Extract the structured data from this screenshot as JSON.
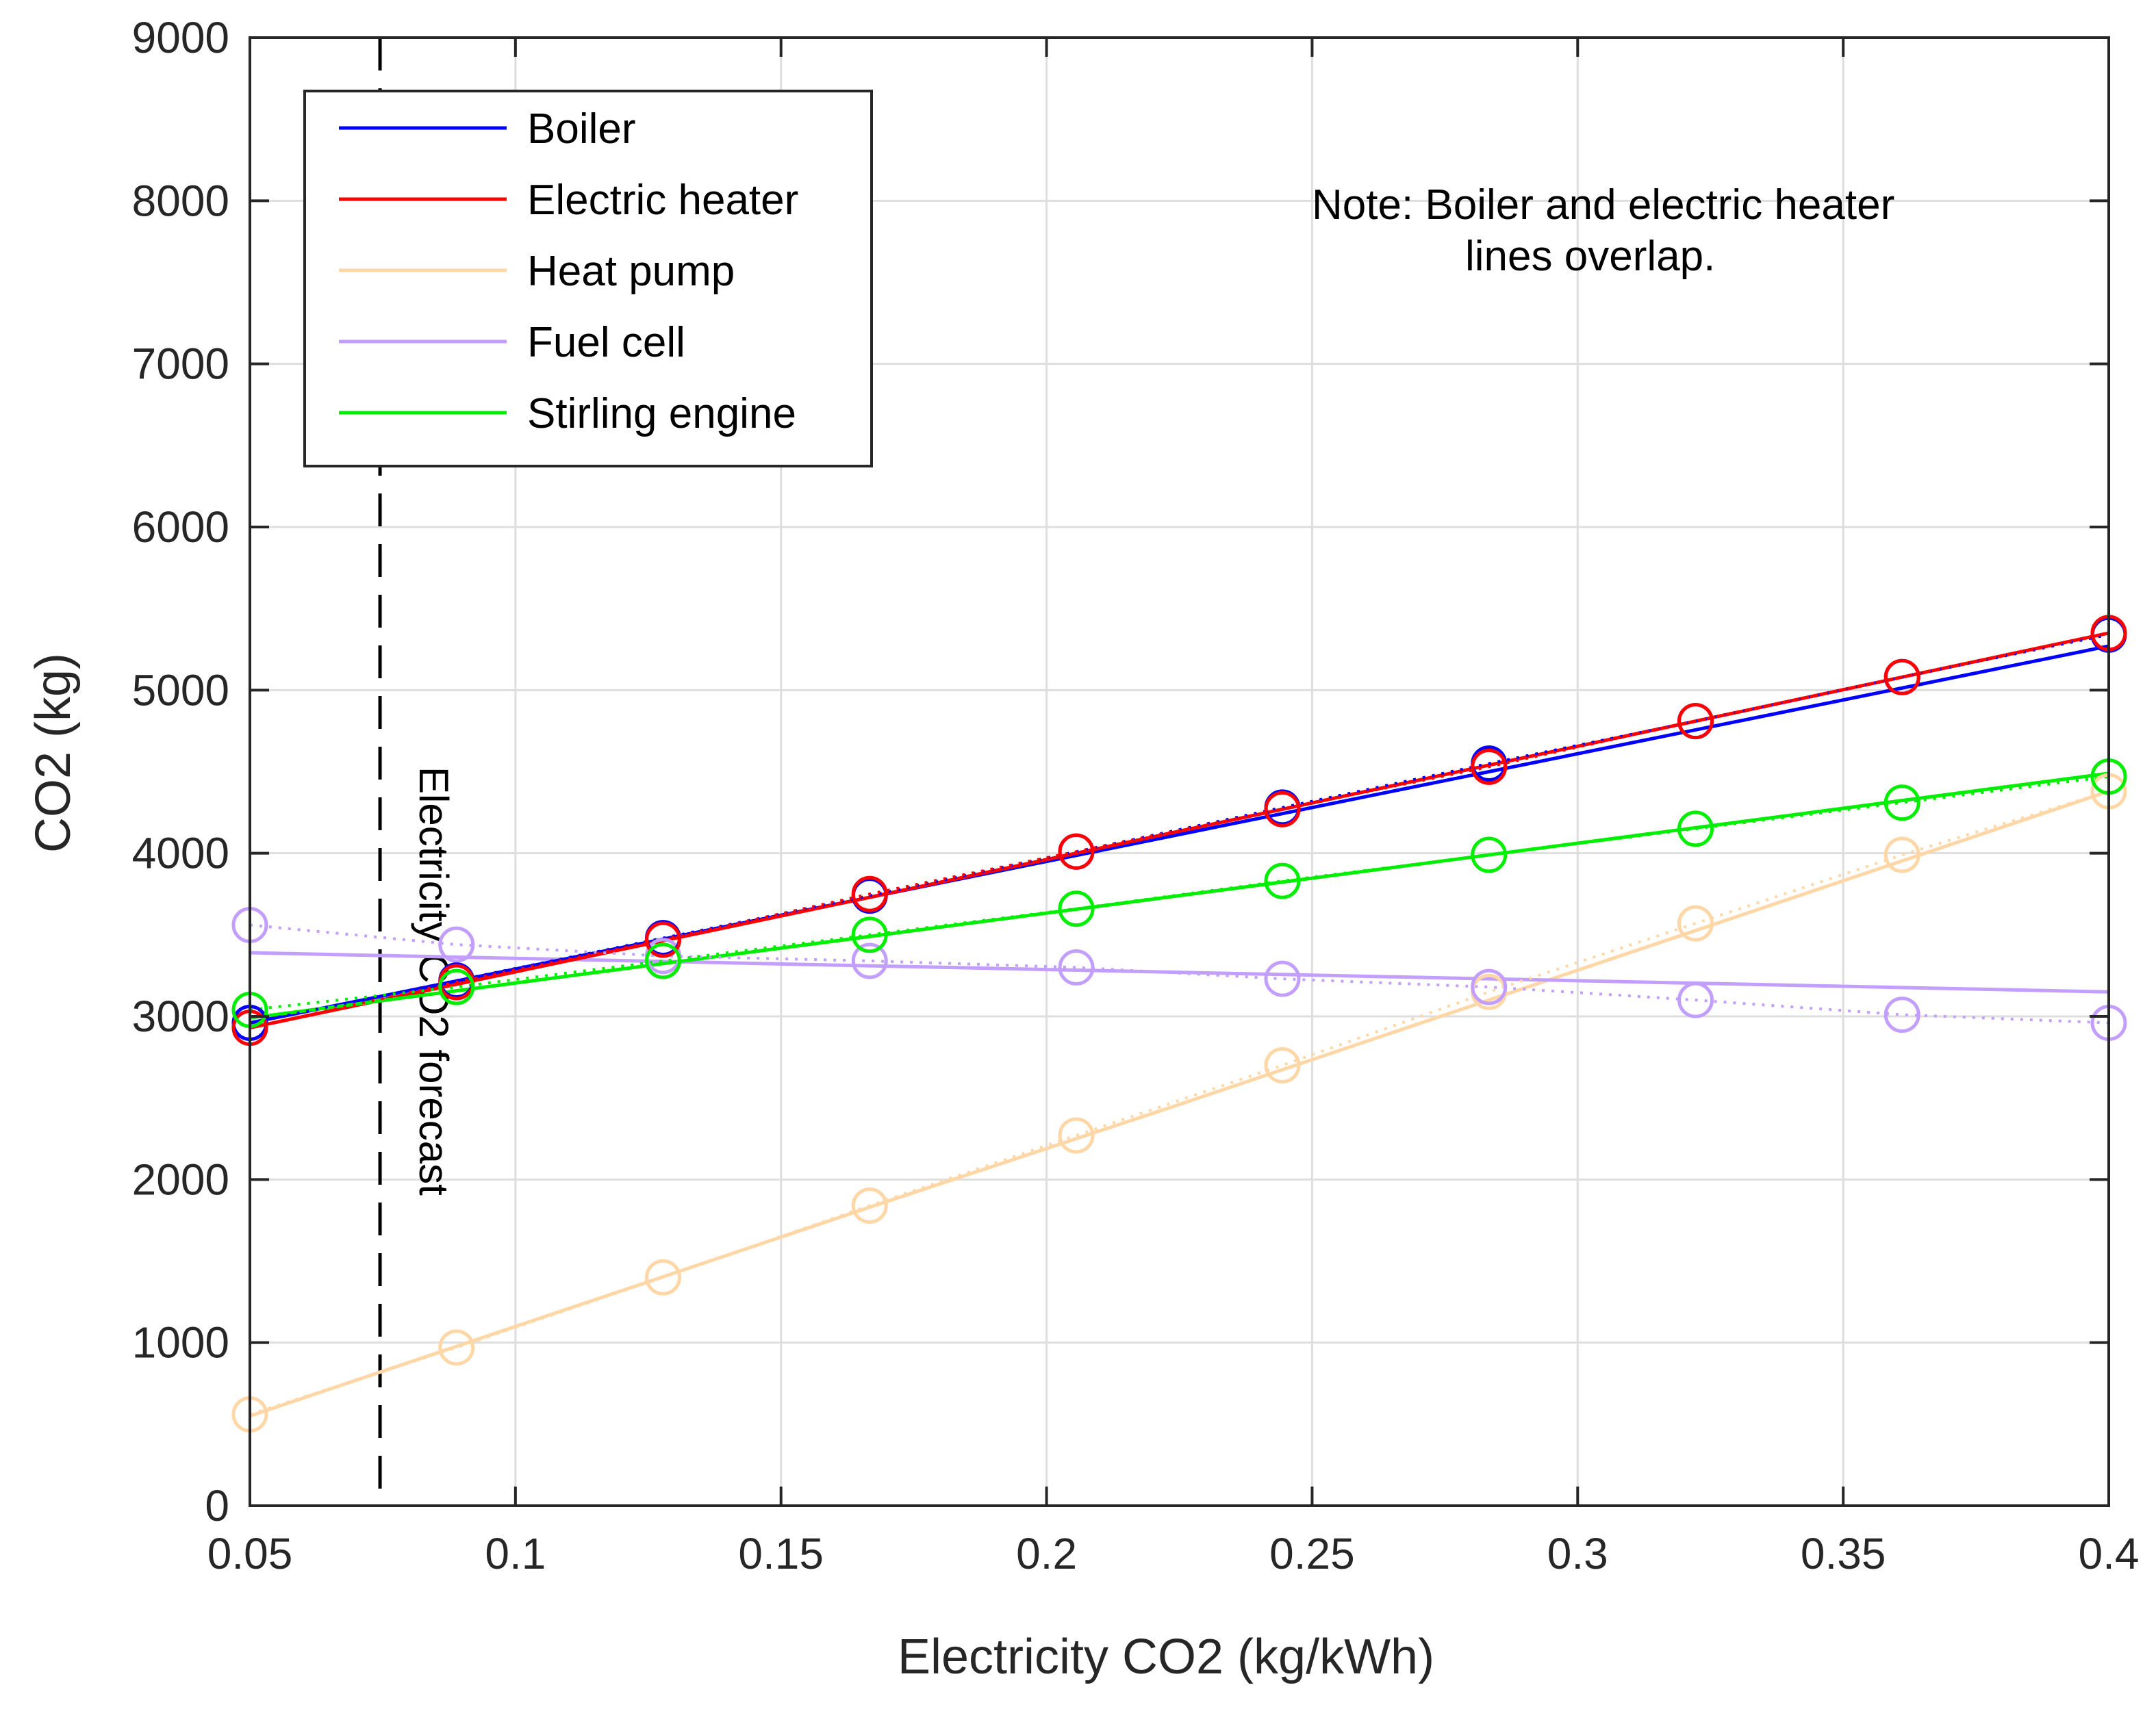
{
  "chart_data": {
    "type": "line",
    "xlabel": "Electricity CO2 (kg/kWh)",
    "ylabel": "CO2 (kg)",
    "xlim": [
      0.05,
      0.4
    ],
    "ylim": [
      0,
      9000
    ],
    "xticks": [
      0.05,
      0.1,
      0.15,
      0.2,
      0.25,
      0.3,
      0.35,
      0.4
    ],
    "xtick_labels": [
      "0.05",
      "0.1",
      "0.15",
      "0.2",
      "0.25",
      "0.3",
      "0.35",
      "0.4"
    ],
    "yticks": [
      0,
      1000,
      2000,
      3000,
      4000,
      5000,
      6000,
      7000,
      8000,
      9000
    ],
    "ytick_labels": [
      "0",
      "1000",
      "2000",
      "3000",
      "4000",
      "5000",
      "6000",
      "7000",
      "8000",
      "9000"
    ],
    "grid": true,
    "legend_position": "top-left",
    "x": [
      0.05,
      0.0889,
      0.1278,
      0.1667,
      0.2056,
      0.2444,
      0.2833,
      0.3222,
      0.3611,
      0.4
    ],
    "series": [
      {
        "name": "Boiler",
        "color": "#0000ff",
        "markers": [
          2960,
          3220,
          3480,
          3740,
          4010,
          4280,
          4550,
          4810,
          5080,
          5340
        ],
        "fit": [
          2960,
          3345,
          3730,
          4115,
          4500,
          4885,
          5270
        ],
        "fit_x": [
          0.05,
          0.1083,
          0.1667,
          0.225,
          0.2833,
          0.3417,
          0.4
        ]
      },
      {
        "name": "Electric heater",
        "color": "#ff0000",
        "markers": [
          2930,
          3210,
          3470,
          3750,
          4010,
          4270,
          4530,
          4810,
          5080,
          5350
        ],
        "fit": [
          2930,
          3330,
          3730,
          4135,
          4540,
          4945,
          5350
        ],
        "fit_x": [
          0.05,
          0.1083,
          0.1667,
          0.225,
          0.2833,
          0.3417,
          0.4
        ]
      },
      {
        "name": "Heat pump",
        "color": "#ffd7a6",
        "markers": [
          560,
          970,
          1400,
          1840,
          2270,
          2700,
          3150,
          3570,
          3990,
          4380
        ],
        "fit": [
          550,
          1190,
          1830,
          2460,
          3100,
          3740,
          4380
        ],
        "fit_x": [
          0.05,
          0.1083,
          0.1667,
          0.225,
          0.2833,
          0.3417,
          0.4
        ]
      },
      {
        "name": "Fuel cell",
        "color": "#c29fff",
        "markers": [
          3560,
          3440,
          3370,
          3340,
          3300,
          3230,
          3180,
          3100,
          3010,
          2960
        ],
        "fit": [
          3390,
          3350,
          3310,
          3270,
          3230,
          3190,
          3150
        ],
        "fit_x": [
          0.05,
          0.1083,
          0.1667,
          0.225,
          0.2833,
          0.3417,
          0.4
        ]
      },
      {
        "name": "Stirling engine",
        "color": "#00ee00",
        "markers": [
          3040,
          3180,
          3340,
          3500,
          3660,
          3830,
          3990,
          4150,
          4310,
          4470
        ],
        "fit": [
          2990,
          3240,
          3490,
          3740,
          3990,
          4240,
          4490
        ],
        "fit_x": [
          0.05,
          0.1083,
          0.1667,
          0.225,
          0.2833,
          0.3417,
          0.4
        ]
      }
    ],
    "forecast_line": {
      "x": 0.0745,
      "label": "Electricity CO2 forecast"
    },
    "note": {
      "line1": "Note: Boiler and electric heater",
      "line2": "lines overlap."
    }
  }
}
